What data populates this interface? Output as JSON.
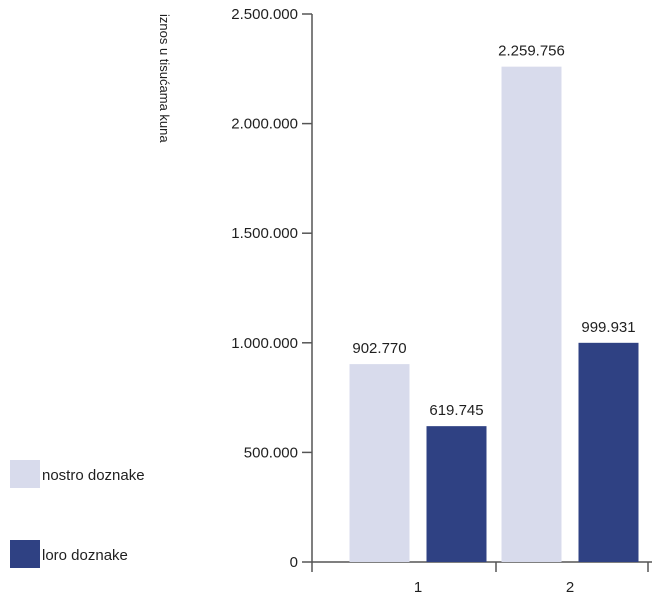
{
  "chart_data": {
    "type": "bar",
    "categories": [
      "1",
      "2"
    ],
    "series": [
      {
        "name": "nostro doznake",
        "values": [
          902770,
          2259756
        ],
        "color": "#d8dbec",
        "labels": [
          "902.770",
          "2.259.756"
        ]
      },
      {
        "name": "loro doznake",
        "values": [
          619745,
          999931
        ],
        "color": "#2f4183",
        "labels": [
          "619.745",
          "999.931"
        ]
      }
    ],
    "ylabel": "iznos u tisućama kuna",
    "ylim": [
      0,
      2500000
    ],
    "yticks": [
      {
        "value": 0,
        "label": "0"
      },
      {
        "value": 500000,
        "label": "500.000"
      },
      {
        "value": 1000000,
        "label": "1.000.000"
      },
      {
        "value": 1500000,
        "label": "1.500.000"
      },
      {
        "value": 2000000,
        "label": "2.000.000"
      },
      {
        "value": 2500000,
        "label": "2.500.000"
      }
    ],
    "legend_position": "left",
    "grid": false
  }
}
